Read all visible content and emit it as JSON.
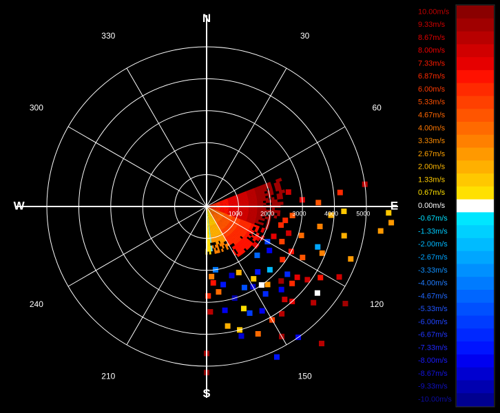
{
  "chart_data": {
    "type": "polar-scatter",
    "title": "",
    "range_unit": "",
    "range_rings": [
      1000,
      2000,
      3000,
      4000,
      5000
    ],
    "range_max": 5000,
    "angle_labels": [
      {
        "angle": 30,
        "text": "30"
      },
      {
        "angle": 60,
        "text": "60"
      },
      {
        "angle": 120,
        "text": "120"
      },
      {
        "angle": 150,
        "text": "150"
      },
      {
        "angle": 210,
        "text": "210"
      },
      {
        "angle": 240,
        "text": "240"
      },
      {
        "angle": 300,
        "text": "300"
      },
      {
        "angle": 330,
        "text": "330"
      }
    ],
    "cardinals": [
      {
        "angle": 0,
        "text": "N"
      },
      {
        "angle": 90,
        "text": "E"
      },
      {
        "angle": 180,
        "text": "S"
      },
      {
        "angle": 270,
        "text": "W"
      }
    ],
    "range_labels": [
      {
        "range": 1000,
        "text": "1000"
      },
      {
        "range": 2000,
        "text": "2000"
      },
      {
        "range": 3000,
        "text": "3000"
      },
      {
        "range": 4000,
        "text": "4000"
      },
      {
        "range": 5000,
        "text": "5000"
      }
    ],
    "grid": true,
    "spokes_deg": 30,
    "colorbar": {
      "unit": "m/s",
      "placement": "right",
      "entries": [
        {
          "label": "10.00m/s",
          "color": "#8a0000",
          "text_color": "#c00000"
        },
        {
          "label": "9.33m/s",
          "color": "#a00000",
          "text_color": "#d00000"
        },
        {
          "label": "8.67m/s",
          "color": "#b80000",
          "text_color": "#e00000"
        },
        {
          "label": "8.00m/s",
          "color": "#d00000",
          "text_color": "#f00000"
        },
        {
          "label": "7.33m/s",
          "color": "#e60000",
          "text_color": "#ff1a00"
        },
        {
          "label": "6.87m/s",
          "color": "#ff1100",
          "text_color": "#ff2a00"
        },
        {
          "label": "6.00m/s",
          "color": "#ff2a00",
          "text_color": "#ff3a00"
        },
        {
          "label": "5.33m/s",
          "color": "#ff4000",
          "text_color": "#ff5000"
        },
        {
          "label": "4.67m/s",
          "color": "#ff5500",
          "text_color": "#ff6600"
        },
        {
          "label": "4.00m/s",
          "color": "#ff6a00",
          "text_color": "#ff7700"
        },
        {
          "label": "3.33m/s",
          "color": "#ff8000",
          "text_color": "#ff8c00"
        },
        {
          "label": "2.67m/s",
          "color": "#ff9900",
          "text_color": "#ffa200"
        },
        {
          "label": "2.00m/s",
          "color": "#ffb000",
          "text_color": "#ffb800"
        },
        {
          "label": "1.33m/s",
          "color": "#ffc800",
          "text_color": "#ffcc00"
        },
        {
          "label": "0.67m/s",
          "color": "#ffe000",
          "text_color": "#ffe000"
        },
        {
          "label": "0.00m/s",
          "color": "#ffffff",
          "text_color": "#ffffff"
        },
        {
          "label": "-0.67m/s",
          "color": "#00e6ff",
          "text_color": "#00e0ff"
        },
        {
          "label": "-1.33m/s",
          "color": "#00d0ff",
          "text_color": "#00ccff"
        },
        {
          "label": "-2.00m/s",
          "color": "#00bbff",
          "text_color": "#00b8ff"
        },
        {
          "label": "-2.67m/s",
          "color": "#00a6ff",
          "text_color": "#00a4ff"
        },
        {
          "label": "-3.33m/s",
          "color": "#0090ff",
          "text_color": "#1090ff"
        },
        {
          "label": "-4.00m/s",
          "color": "#007bff",
          "text_color": "#207cff"
        },
        {
          "label": "-4.67m/s",
          "color": "#0066ff",
          "text_color": "#2068ff"
        },
        {
          "label": "-5.33m/s",
          "color": "#0050ff",
          "text_color": "#2055ff"
        },
        {
          "label": "-6.00m/s",
          "color": "#003cff",
          "text_color": "#2044ff"
        },
        {
          "label": "-6.67m/s",
          "color": "#0028ff",
          "text_color": "#2036ff"
        },
        {
          "label": "-7.33m/s",
          "color": "#0014ff",
          "text_color": "#2028ff"
        },
        {
          "label": "-8.00m/s",
          "color": "#0000f0",
          "text_color": "#1a1aff"
        },
        {
          "label": "-8.67m/s",
          "color": "#0000d0",
          "text_color": "#1414e0"
        },
        {
          "label": "-9.33m/s",
          "color": "#0000b0",
          "text_color": "#1010c0"
        },
        {
          "label": "-10.00m/s",
          "color": "#000090",
          "text_color": "#0c0ca0"
        }
      ]
    },
    "points": [
      {
        "az": 150,
        "range": 4700,
        "v": 9.33
      },
      {
        "az": 145,
        "range": 4100,
        "v": 8.67
      },
      {
        "az": 140,
        "range": 3800,
        "v": 8.0
      },
      {
        "az": 135,
        "range": 3300,
        "v": 9.33
      },
      {
        "az": 132,
        "range": 4500,
        "v": 8.67
      },
      {
        "az": 128,
        "range": 3600,
        "v": 7.33
      },
      {
        "az": 125,
        "range": 2900,
        "v": 6.0
      },
      {
        "az": 122,
        "range": 4200,
        "v": 6.87
      },
      {
        "az": 118,
        "range": 3400,
        "v": 4.67
      },
      {
        "az": 115,
        "range": 2600,
        "v": 5.33
      },
      {
        "az": 112,
        "range": 3900,
        "v": 3.33
      },
      {
        "az": 110,
        "range": 4800,
        "v": 2.67
      },
      {
        "az": 107,
        "range": 3100,
        "v": 4.0
      },
      {
        "az": 104,
        "range": 2400,
        "v": 6.0
      },
      {
        "az": 102,
        "range": 4400,
        "v": 2.0
      },
      {
        "az": 100,
        "range": 3600,
        "v": 3.33
      },
      {
        "az": 98,
        "range": 5500,
        "v": 2.67
      },
      {
        "az": 96,
        "range": 2700,
        "v": 4.67
      },
      {
        "az": 94,
        "range": 3900,
        "v": 2.0
      },
      {
        "az": 92,
        "range": 4300,
        "v": 1.33
      },
      {
        "az": 88,
        "range": 3500,
        "v": 4.67
      },
      {
        "az": 86,
        "range": 3000,
        "v": 7.33
      },
      {
        "az": 84,
        "range": 4200,
        "v": 6.0
      },
      {
        "az": 82,
        "range": 5000,
        "v": 8.67
      },
      {
        "az": 80,
        "range": 2600,
        "v": 8.0
      },
      {
        "az": 92,
        "range": 5700,
        "v": 1.33
      },
      {
        "az": 95,
        "range": 5800,
        "v": 2.67
      },
      {
        "az": 120,
        "range": 2200,
        "v": -6.0
      },
      {
        "az": 125,
        "range": 2400,
        "v": -8.0
      },
      {
        "az": 130,
        "range": 3300,
        "v": -6.67
      },
      {
        "az": 134,
        "range": 2200,
        "v": -4.67
      },
      {
        "az": 138,
        "range": 3500,
        "v": -8.0
      },
      {
        "az": 142,
        "range": 2600,
        "v": -7.33
      },
      {
        "az": 146,
        "range": 3300,
        "v": -6.67
      },
      {
        "az": 150,
        "range": 2900,
        "v": -8.67
      },
      {
        "az": 152,
        "range": 3700,
        "v": -8.0
      },
      {
        "az": 155,
        "range": 2800,
        "v": -5.33
      },
      {
        "az": 158,
        "range": 3600,
        "v": -6.0
      },
      {
        "az": 160,
        "range": 2300,
        "v": -8.67
      },
      {
        "az": 163,
        "range": 3000,
        "v": -9.33
      },
      {
        "az": 165,
        "range": 4200,
        "v": -8.67
      },
      {
        "az": 168,
        "range": 2500,
        "v": -7.33
      },
      {
        "az": 170,
        "range": 3300,
        "v": -8.0
      },
      {
        "az": 172,
        "range": 2000,
        "v": -4.0
      },
      {
        "az": 110,
        "range": 3700,
        "v": -2.67
      },
      {
        "az": 135,
        "range": 2800,
        "v": -2.0
      },
      {
        "az": 145,
        "range": 3000,
        "v": 0.0
      },
      {
        "az": 128,
        "range": 4400,
        "v": 0.0
      },
      {
        "az": 147,
        "range": 2700,
        "v": 1.33
      },
      {
        "az": 154,
        "range": 2300,
        "v": 2.0
      },
      {
        "az": 142,
        "range": 3100,
        "v": 2.67
      },
      {
        "az": 160,
        "range": 3400,
        "v": 0.67
      },
      {
        "az": 165,
        "range": 4000,
        "v": 1.33
      },
      {
        "az": 170,
        "range": 3800,
        "v": 2.0
      },
      {
        "az": 172,
        "range": 2700,
        "v": 4.0
      },
      {
        "az": 175,
        "range": 2400,
        "v": 6.87
      },
      {
        "az": 178,
        "range": 3300,
        "v": 8.67
      },
      {
        "az": 180,
        "range": 4600,
        "v": 9.33
      },
      {
        "az": 180,
        "range": 5200,
        "v": 10.0
      },
      {
        "az": 179,
        "range": 2800,
        "v": 6.0
      },
      {
        "az": 176,
        "range": 2200,
        "v": 3.33
      },
      {
        "az": 158,
        "range": 4300,
        "v": 4.0
      },
      {
        "az": 150,
        "range": 4100,
        "v": 5.33
      },
      {
        "az": 138,
        "range": 4000,
        "v": 7.33
      },
      {
        "az": 132,
        "range": 3600,
        "v": 6.0
      },
      {
        "az": 126,
        "range": 3900,
        "v": 8.0
      },
      {
        "az": 118,
        "range": 3000,
        "v": 6.87
      },
      {
        "az": 114,
        "range": 2300,
        "v": 7.33
      },
      {
        "az": 108,
        "range": 2700,
        "v": 8.0
      },
      {
        "az": 100,
        "range": 2500,
        "v": 6.0
      },
      {
        "az": 155,
        "range": 5200,
        "v": -7.33
      },
      {
        "az": 145,
        "range": 5000,
        "v": -8.0
      },
      {
        "az": 125,
        "range": 5300,
        "v": 9.33
      },
      {
        "az": 140,
        "range": 5600,
        "v": 8.67
      },
      {
        "az": 118,
        "range": 4700,
        "v": 8.0
      }
    ]
  }
}
